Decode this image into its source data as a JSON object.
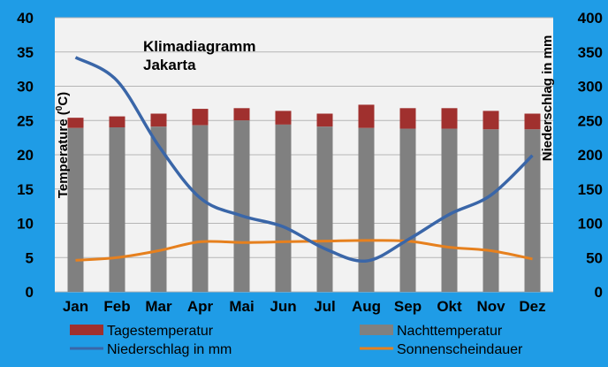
{
  "chart_data": {
    "type": "bar",
    "title_lines": [
      "Klimadiagramm",
      "Jakarta"
    ],
    "categories": [
      "Jan",
      "Feb",
      "Mar",
      "Apr",
      "Mai",
      "Jun",
      "Jul",
      "Aug",
      "Sep",
      "Okt",
      "Nov",
      "Dez"
    ],
    "y_left": {
      "label_text": "Temperature (",
      "label_sup": "0",
      "label_unit": "C)",
      "lim": [
        0,
        40
      ],
      "ticks": [
        0,
        5,
        10,
        15,
        20,
        25,
        30,
        35,
        40
      ]
    },
    "y_right": {
      "label": "Niederschlag in mm",
      "lim": [
        0,
        400
      ],
      "ticks": [
        0,
        50,
        100,
        150,
        200,
        250,
        300,
        350,
        400
      ]
    },
    "grid": true,
    "legend_position": "bottom",
    "series": [
      {
        "name": "Tagestemperatur",
        "kind": "bar-stacked-top",
        "axis": "left",
        "color": "#a0302e",
        "values": [
          25.4,
          25.6,
          26.0,
          26.7,
          26.8,
          26.4,
          26.0,
          27.3,
          26.8,
          26.8,
          26.4,
          26.0
        ]
      },
      {
        "name": "Nachttemperatur",
        "kind": "bar",
        "axis": "left",
        "color": "#808080",
        "values": [
          23.9,
          24.0,
          24.1,
          24.3,
          25.0,
          24.4,
          24.1,
          23.9,
          23.8,
          23.8,
          23.7,
          23.7
        ]
      },
      {
        "name": "Niederschlag in mm",
        "kind": "line",
        "axis": "right",
        "color": "#3a66a8",
        "values": [
          342,
          308,
          213,
          137,
          111,
          95,
          63,
          45,
          76,
          113,
          141,
          199
        ]
      },
      {
        "name": "Sonnenscheindauer",
        "kind": "line",
        "axis": "left",
        "color": "#e6801e",
        "values": [
          4.6,
          5.0,
          6.0,
          7.3,
          7.2,
          7.3,
          7.4,
          7.5,
          7.4,
          6.5,
          6.0,
          4.8
        ]
      }
    ]
  }
}
